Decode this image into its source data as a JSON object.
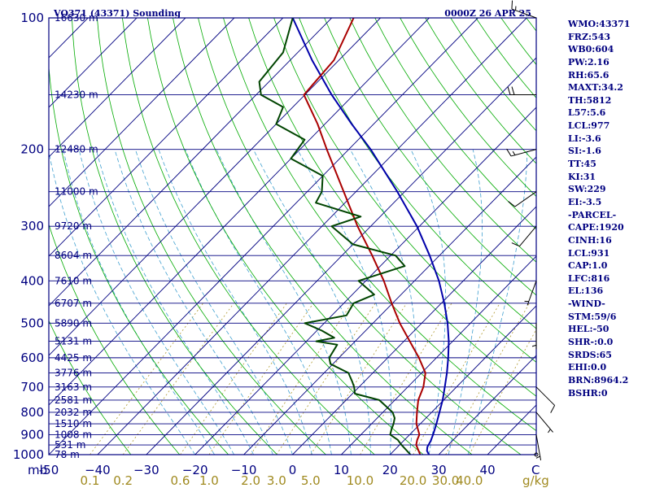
{
  "header": {
    "station": "VO371 (43371) Sounding",
    "time": "0000Z 26 APR 25"
  },
  "chart_data": {
    "type": "line",
    "diagram": "skew-T log-P",
    "pressure_levels_hpa": [
      100,
      200,
      300,
      400,
      500,
      600,
      700,
      800,
      900,
      1000
    ],
    "pressure_tick_labels": [
      "100",
      "200",
      "300",
      "400",
      "500",
      "600",
      "700",
      "800",
      "900",
      "1000"
    ],
    "plim_hpa": [
      100,
      1000
    ],
    "temperature_ticks_c": [
      -50,
      -40,
      -30,
      -20,
      -10,
      0,
      10,
      20,
      30,
      40
    ],
    "temperature_tick_labels": [
      "-50",
      "−40",
      "−30",
      "−20",
      "−10",
      "0",
      "10",
      "20",
      "30",
      "40"
    ],
    "xlim_c_at_1000": [
      -50,
      50
    ],
    "x_unit_left": "mb",
    "x_unit_right": "C",
    "mixing_ratio_ticks_gkg": [
      0.1,
      0.2,
      0.6,
      1.0,
      2.0,
      3.0,
      5.0,
      10.0,
      20.0,
      30.0,
      40.0
    ],
    "mixing_ratio_tick_labels": [
      "0.1",
      "0.2",
      "0.6",
      "1.0",
      "2.0",
      "3.0",
      "5.0",
      "10.0",
      "20.0",
      "30.0",
      "40.0"
    ],
    "mixing_ratio_unit": "g/kg",
    "height_levels": [
      {
        "p": 100,
        "label": "16630 m"
      },
      {
        "p": 150,
        "label": "14230 m"
      },
      {
        "p": 200,
        "label": "12480 m"
      },
      {
        "p": 250,
        "label": "11000 m"
      },
      {
        "p": 300,
        "label": "9720 m"
      },
      {
        "p": 350,
        "label": "8604 m"
      },
      {
        "p": 400,
        "label": "7610 m"
      },
      {
        "p": 450,
        "label": "6707 m"
      },
      {
        "p": 500,
        "label": "5890 m"
      },
      {
        "p": 550,
        "label": "5131 m"
      },
      {
        "p": 600,
        "label": "4425 m"
      },
      {
        "p": 650,
        "label": "3776 m"
      },
      {
        "p": 700,
        "label": "3163 m"
      },
      {
        "p": 750,
        "label": "2581 m"
      },
      {
        "p": 800,
        "label": "2032 m"
      },
      {
        "p": 850,
        "label": "1510 m"
      },
      {
        "p": 900,
        "label": "1008 m"
      },
      {
        "p": 950,
        "label": "531 m"
      },
      {
        "p": 1000,
        "label": "78 m"
      }
    ],
    "temperature": {
      "color": "#aa0000",
      "points": [
        [
          1006,
          26.4
        ],
        [
          1000,
          26.2
        ],
        [
          950,
          23.4
        ],
        [
          925,
          22.6
        ],
        [
          900,
          22.0
        ],
        [
          850,
          19.2
        ],
        [
          800,
          17.0
        ],
        [
          750,
          14.8
        ],
        [
          700,
          13.2
        ],
        [
          650,
          10.8
        ],
        [
          600,
          6.4
        ],
        [
          550,
          1.2
        ],
        [
          500,
          -4.5
        ],
        [
          450,
          -10.2
        ],
        [
          400,
          -16.3
        ],
        [
          350,
          -23.8
        ],
        [
          300,
          -32.7
        ],
        [
          250,
          -42.5
        ],
        [
          200,
          -54.5
        ],
        [
          175,
          -61.5
        ],
        [
          150,
          -70.2
        ],
        [
          125,
          -71.0
        ],
        [
          100,
          -75.5
        ]
      ]
    },
    "dewpoint": {
      "color": "#004400",
      "points": [
        [
          1006,
          24.4
        ],
        [
          1000,
          24.2
        ],
        [
          950,
          20.4
        ],
        [
          925,
          18.6
        ],
        [
          900,
          16.0
        ],
        [
          875,
          15.2
        ],
        [
          850,
          14.5
        ],
        [
          825,
          13.6
        ],
        [
          800,
          12.0
        ],
        [
          750,
          6.8
        ],
        [
          725,
          0.5
        ],
        [
          700,
          -1.0
        ],
        [
          680,
          -2.5
        ],
        [
          650,
          -5.0
        ],
        [
          620,
          -10.5
        ],
        [
          600,
          -12.0
        ],
        [
          560,
          -13.0
        ],
        [
          550,
          -18.0
        ],
        [
          540,
          -15.0
        ],
        [
          520,
          -19.0
        ],
        [
          500,
          -24.0
        ],
        [
          480,
          -17.0
        ],
        [
          450,
          -18.0
        ],
        [
          430,
          -15.5
        ],
        [
          400,
          -21.5
        ],
        [
          370,
          -15.0
        ],
        [
          350,
          -19.0
        ],
        [
          330,
          -30.0
        ],
        [
          300,
          -38.0
        ],
        [
          285,
          -34.0
        ],
        [
          265,
          -46.0
        ],
        [
          250,
          -47.0
        ],
        [
          230,
          -50.0
        ],
        [
          210,
          -60.0
        ],
        [
          190,
          -61.0
        ],
        [
          175,
          -70.0
        ],
        [
          160,
          -72.0
        ],
        [
          150,
          -79.0
        ],
        [
          140,
          -82.0
        ],
        [
          120,
          -83.0
        ],
        [
          100,
          -88.0
        ]
      ]
    },
    "parcel": {
      "color": "#0000aa",
      "points": [
        [
          1006,
          28.5
        ],
        [
          1000,
          28.0
        ],
        [
          980,
          26.8
        ],
        [
          960,
          26.1
        ],
        [
          931,
          25.6
        ],
        [
          900,
          24.8
        ],
        [
          850,
          23.3
        ],
        [
          800,
          21.6
        ],
        [
          750,
          19.8
        ],
        [
          700,
          17.6
        ],
        [
          650,
          15.2
        ],
        [
          600,
          12.4
        ],
        [
          550,
          9.2
        ],
        [
          500,
          5.3
        ],
        [
          450,
          0.6
        ],
        [
          400,
          -5.0
        ],
        [
          350,
          -12.0
        ],
        [
          300,
          -20.5
        ],
        [
          250,
          -31.5
        ],
        [
          200,
          -45.5
        ],
        [
          175,
          -54.5
        ],
        [
          150,
          -64.5
        ],
        [
          125,
          -75.5
        ],
        [
          100,
          -88.0
        ]
      ]
    },
    "wind_barbs": [
      {
        "p": 100,
        "dir": 290,
        "spd": 15
      },
      {
        "p": 150,
        "dir": 270,
        "spd": 20
      },
      {
        "p": 200,
        "dir": 255,
        "spd": 15
      },
      {
        "p": 250,
        "dir": 235,
        "spd": 10
      },
      {
        "p": 300,
        "dir": 220,
        "spd": 10
      },
      {
        "p": 400,
        "dir": 200,
        "spd": 5
      },
      {
        "p": 500,
        "dir": 180,
        "spd": 5
      },
      {
        "p": 700,
        "dir": 135,
        "spd": 10
      },
      {
        "p": 800,
        "dir": 140,
        "spd": 5
      },
      {
        "p": 900,
        "dir": 170,
        "spd": 5
      },
      {
        "p": 1000,
        "dir": 0,
        "spd": 0
      }
    ]
  },
  "sidebar": {
    "rows": [
      "WMO:43371",
      "FRZ:543",
      "WB0:604",
      "PW:2.16",
      "RH:65.6",
      "MAXT:34.2",
      "TH:5812",
      "L57:5.6",
      "LCL:977",
      "LI:-3.6",
      "SI:-1.6",
      "TT:45",
      "KI:31",
      "SW:229",
      "EI:-3.5",
      "-PARCEL-",
      "CAPE:1920",
      "CINH:16",
      "LCL:931",
      "CAP:1.0",
      "LFC:816",
      "EL:136",
      "-WIND-",
      "STM:59/6",
      "HEL:-50",
      "SHR-:0.0",
      "SRDS:65",
      "EHI:0.0",
      "BRN:8964.2",
      "BSHR:0"
    ]
  },
  "colors": {
    "frame": "#000080",
    "isotherm": "#000080",
    "dry_adiabat": "#00aa00",
    "moist_adiabat": "#40a0d0",
    "mixing_ratio": "#b09a30",
    "mixing_label": "#a08a20"
  }
}
